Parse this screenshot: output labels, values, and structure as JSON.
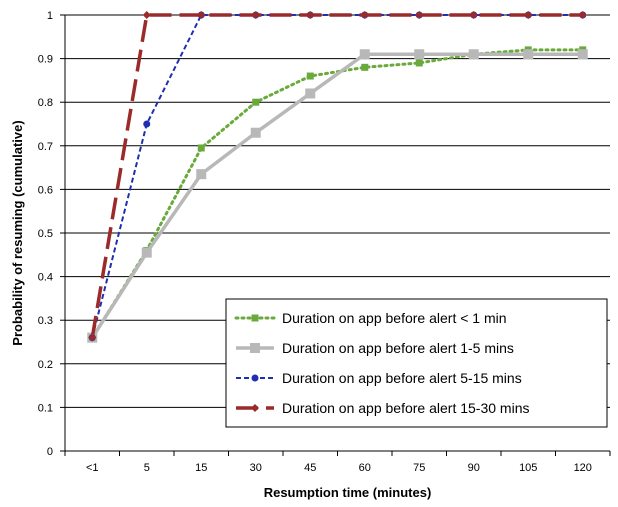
{
  "chart_data": {
    "type": "line",
    "title": "",
    "xlabel": "Resumption time (minutes)",
    "ylabel": "Probability of resuming (cumulative)",
    "categories": [
      "<1",
      "5",
      "15",
      "30",
      "45",
      "60",
      "75",
      "90",
      "105",
      "120"
    ],
    "ylim": [
      0,
      1
    ],
    "yticks": [
      "0",
      "0.1",
      "0.2",
      "0.3",
      "0.4",
      "0.5",
      "0.6",
      "0.7",
      "0.8",
      "0.9",
      "1"
    ],
    "grid": "horizontal",
    "legend_position": "bottom-right",
    "series": [
      {
        "name": "Duration on app before alert < 1 min",
        "color": "#6aaa3c",
        "line_style": "dotted",
        "marker": "square",
        "values": [
          0.26,
          0.46,
          0.695,
          0.8,
          0.86,
          0.88,
          0.89,
          0.91,
          0.92,
          0.92
        ]
      },
      {
        "name": "Duration on app before alert 1-5 mins",
        "color": "#b8b8b8",
        "line_style": "solid",
        "marker": "square",
        "values": [
          0.26,
          0.455,
          0.635,
          0.73,
          0.82,
          0.91,
          0.91,
          0.91,
          0.91,
          0.91
        ]
      },
      {
        "name": "Duration on app before alert 5-15 mins",
        "color": "#1f2fb0",
        "line_style": "dashed",
        "marker": "circle",
        "values": [
          0.26,
          0.75,
          1,
          1,
          1,
          1,
          1,
          1,
          1,
          1
        ]
      },
      {
        "name": "Duration on app before alert 15-30 mins",
        "color": "#9b2a2a",
        "line_style": "longdash",
        "marker": "diamond",
        "values": [
          0.26,
          1,
          1,
          1,
          1,
          1,
          1,
          1,
          1,
          1
        ]
      }
    ]
  }
}
